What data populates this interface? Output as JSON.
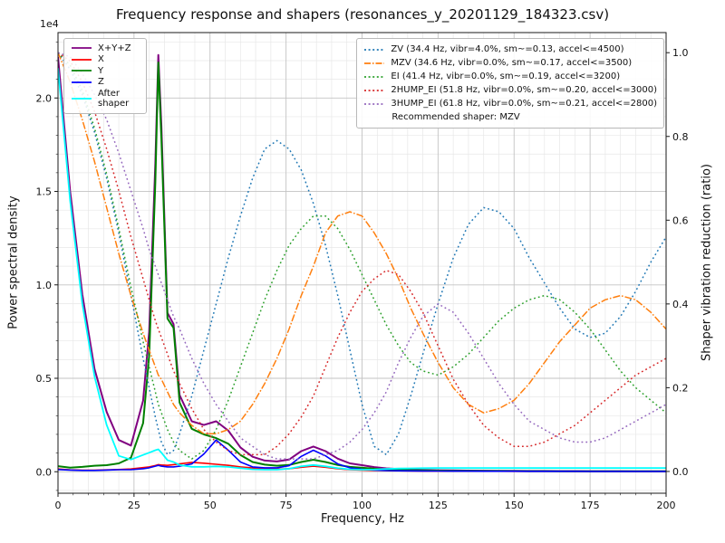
{
  "chart_data": {
    "type": "line",
    "title": "Frequency response and shapers (resonances_y_20201129_184323.csv)",
    "xlabel": "Frequency, Hz",
    "ylabel_left": "Power spectral density",
    "ylabel_right": "Shaper vibration reduction (ratio)",
    "offset_text": "1e4",
    "xlim": [
      0,
      200
    ],
    "ylim_left": [
      -1150,
      23500
    ],
    "ylim_right": [
      -0.052,
      1.048
    ],
    "xticks": [
      0,
      25,
      50,
      75,
      100,
      125,
      150,
      175,
      200
    ],
    "yticks_left": [
      "0.0",
      "0.5",
      "1.0",
      "1.5",
      "2.0"
    ],
    "yticks_right": [
      "0.0",
      "0.2",
      "0.4",
      "0.6",
      "0.8",
      "1.0"
    ],
    "grid": {
      "major": true,
      "minor": true
    },
    "legend_position": {
      "psd": "upper left",
      "shapers": "upper right"
    },
    "recommended_shaper": "MZV",
    "x": [
      0,
      4,
      8,
      12,
      16,
      20,
      24,
      28,
      30,
      32,
      33,
      34,
      36,
      38,
      40,
      44,
      48,
      52,
      56,
      60,
      64,
      68,
      72,
      76,
      80,
      84,
      88,
      92,
      96,
      100,
      104,
      108,
      112,
      116,
      120,
      125,
      130,
      135,
      140,
      145,
      150,
      155,
      160,
      165,
      170,
      175,
      180,
      185,
      190,
      195,
      200
    ],
    "psd_series": [
      {
        "name": "X+Y+Z",
        "color": "#800080",
        "dash": "solid",
        "width": 2.0,
        "values": [
          22200,
          15000,
          9500,
          5500,
          3200,
          1700,
          1400,
          3800,
          7500,
          16500,
          22300,
          18500,
          8500,
          7900,
          4100,
          2700,
          2500,
          2700,
          2200,
          1300,
          800,
          600,
          550,
          650,
          1100,
          1350,
          1100,
          700,
          450,
          350,
          250,
          180,
          150,
          120,
          100,
          80,
          70,
          60,
          55,
          50,
          45,
          40,
          40,
          35,
          35,
          30,
          30,
          30,
          25,
          25,
          25
        ]
      },
      {
        "name": "X",
        "color": "#ff0000",
        "dash": "solid",
        "width": 1.6,
        "values": [
          150,
          100,
          80,
          80,
          100,
          120,
          150,
          220,
          260,
          330,
          380,
          360,
          340,
          380,
          420,
          500,
          460,
          400,
          340,
          260,
          200,
          160,
          140,
          160,
          240,
          300,
          240,
          160,
          110,
          90,
          70,
          60,
          50,
          45,
          40,
          35,
          30,
          30,
          25,
          25,
          20,
          20,
          20,
          20,
          15,
          15,
          15,
          15,
          15,
          10,
          10
        ]
      },
      {
        "name": "Y",
        "color": "#008000",
        "dash": "solid",
        "width": 2.0,
        "values": [
          300,
          220,
          260,
          320,
          350,
          450,
          750,
          2600,
          6200,
          15500,
          21900,
          17800,
          8200,
          7700,
          3700,
          2300,
          2000,
          1800,
          1500,
          900,
          520,
          380,
          320,
          360,
          520,
          640,
          520,
          360,
          260,
          210,
          160,
          120,
          100,
          80,
          70,
          60,
          50,
          45,
          40,
          40,
          35,
          30,
          30,
          25,
          25,
          25,
          20,
          20,
          20,
          20,
          20
        ]
      },
      {
        "name": "Z",
        "color": "#0000ff",
        "dash": "solid",
        "width": 1.6,
        "values": [
          120,
          90,
          70,
          70,
          90,
          110,
          110,
          160,
          210,
          300,
          340,
          300,
          260,
          260,
          300,
          420,
          950,
          1700,
          1150,
          520,
          260,
          210,
          210,
          320,
          820,
          1150,
          850,
          420,
          210,
          130,
          90,
          60,
          50,
          45,
          40,
          35,
          30,
          30,
          25,
          25,
          25,
          20,
          20,
          20,
          20,
          15,
          15,
          15,
          15,
          15,
          15
        ]
      },
      {
        "name": "After shaper",
        "color": "#00ffff",
        "dash": "solid",
        "width": 1.8,
        "values": [
          21600,
          14500,
          9000,
          5100,
          2500,
          850,
          650,
          900,
          1020,
          1150,
          1200,
          1020,
          620,
          520,
          360,
          260,
          260,
          290,
          260,
          190,
          130,
          110,
          110,
          160,
          290,
          360,
          290,
          190,
          130,
          110,
          120,
          150,
          170,
          180,
          190,
          200,
          200,
          200,
          200,
          200,
          200,
          200,
          200,
          200,
          200,
          200,
          200,
          200,
          200,
          200,
          200
        ]
      }
    ],
    "shaper_series": [
      {
        "name": "ZV",
        "color": "#1f77b4",
        "dash": "dotted",
        "width": 1.5,
        "values": [
          1.0,
          0.96,
          0.9,
          0.81,
          0.7,
          0.57,
          0.42,
          0.27,
          0.2,
          0.13,
          0.1,
          0.07,
          0.04,
          0.05,
          0.09,
          0.18,
          0.29,
          0.4,
          0.51,
          0.61,
          0.7,
          0.77,
          0.79,
          0.77,
          0.72,
          0.64,
          0.54,
          0.42,
          0.29,
          0.16,
          0.06,
          0.04,
          0.09,
          0.18,
          0.28,
          0.4,
          0.51,
          0.59,
          0.63,
          0.62,
          0.58,
          0.51,
          0.45,
          0.39,
          0.34,
          0.32,
          0.33,
          0.37,
          0.43,
          0.5,
          0.56
        ]
      },
      {
        "name": "MZV",
        "color": "#ff7f0e",
        "dash": "dashdot",
        "width": 1.5,
        "values": [
          1.0,
          0.93,
          0.84,
          0.74,
          0.63,
          0.52,
          0.42,
          0.33,
          0.29,
          0.25,
          0.23,
          0.22,
          0.19,
          0.16,
          0.14,
          0.11,
          0.09,
          0.09,
          0.1,
          0.12,
          0.16,
          0.21,
          0.27,
          0.34,
          0.42,
          0.49,
          0.57,
          0.61,
          0.62,
          0.61,
          0.57,
          0.52,
          0.46,
          0.39,
          0.33,
          0.26,
          0.2,
          0.16,
          0.14,
          0.15,
          0.17,
          0.21,
          0.26,
          0.31,
          0.35,
          0.39,
          0.41,
          0.42,
          0.41,
          0.38,
          0.34
        ]
      },
      {
        "name": "EI",
        "color": "#2ca02c",
        "dash": "dotted",
        "width": 1.5,
        "values": [
          1.0,
          0.97,
          0.91,
          0.82,
          0.71,
          0.58,
          0.44,
          0.31,
          0.25,
          0.19,
          0.16,
          0.14,
          0.1,
          0.07,
          0.05,
          0.03,
          0.05,
          0.1,
          0.17,
          0.25,
          0.33,
          0.41,
          0.48,
          0.54,
          0.58,
          0.61,
          0.61,
          0.58,
          0.53,
          0.47,
          0.41,
          0.35,
          0.3,
          0.26,
          0.24,
          0.23,
          0.25,
          0.28,
          0.32,
          0.36,
          0.39,
          0.41,
          0.42,
          0.41,
          0.38,
          0.34,
          0.29,
          0.24,
          0.2,
          0.17,
          0.14
        ]
      },
      {
        "name": "2HUMP_EI",
        "color": "#d62728",
        "dash": "dotted",
        "width": 1.5,
        "values": [
          1.0,
          0.98,
          0.93,
          0.86,
          0.77,
          0.67,
          0.56,
          0.46,
          0.41,
          0.36,
          0.34,
          0.32,
          0.28,
          0.24,
          0.21,
          0.15,
          0.1,
          0.07,
          0.05,
          0.04,
          0.04,
          0.04,
          0.06,
          0.09,
          0.13,
          0.18,
          0.25,
          0.32,
          0.38,
          0.43,
          0.46,
          0.48,
          0.47,
          0.43,
          0.38,
          0.3,
          0.22,
          0.16,
          0.11,
          0.08,
          0.06,
          0.06,
          0.07,
          0.09,
          0.11,
          0.14,
          0.17,
          0.2,
          0.23,
          0.25,
          0.27
        ]
      },
      {
        "name": "3HUMP_EI",
        "color": "#9467bd",
        "dash": "dotted",
        "width": 1.5,
        "values": [
          1.0,
          0.99,
          0.95,
          0.9,
          0.84,
          0.76,
          0.67,
          0.58,
          0.53,
          0.49,
          0.47,
          0.45,
          0.41,
          0.37,
          0.34,
          0.27,
          0.21,
          0.16,
          0.12,
          0.08,
          0.06,
          0.04,
          0.03,
          0.03,
          0.03,
          0.03,
          0.04,
          0.05,
          0.07,
          0.1,
          0.14,
          0.19,
          0.26,
          0.32,
          0.37,
          0.4,
          0.38,
          0.33,
          0.27,
          0.21,
          0.16,
          0.12,
          0.1,
          0.08,
          0.07,
          0.07,
          0.08,
          0.1,
          0.12,
          0.14,
          0.16
        ]
      }
    ],
    "legend_psd": {
      "items": [
        {
          "label": "X+Y+Z",
          "color": "#800080",
          "dash": "solid"
        },
        {
          "label": "X",
          "color": "#ff0000",
          "dash": "solid"
        },
        {
          "label": "Y",
          "color": "#008000",
          "dash": "solid"
        },
        {
          "label": "Z",
          "color": "#0000ff",
          "dash": "solid"
        },
        {
          "label": "After shaper",
          "color": "#00ffff",
          "dash": "solid"
        }
      ]
    },
    "legend_shapers": {
      "items": [
        {
          "label": "ZV (34.4 Hz, vibr=4.0%, sm~=0.13, accel<=4500)",
          "color": "#1f77b4",
          "dash": "dotted"
        },
        {
          "label": "MZV (34.6 Hz, vibr=0.0%, sm~=0.17, accel<=3500)",
          "color": "#ff7f0e",
          "dash": "dashdot"
        },
        {
          "label": "EI (41.4 Hz, vibr=0.0%, sm~=0.19, accel<=3200)",
          "color": "#2ca02c",
          "dash": "dotted"
        },
        {
          "label": "2HUMP_EI (51.8 Hz, vibr=0.0%, sm~=0.20, accel<=3000)",
          "color": "#d62728",
          "dash": "dotted"
        },
        {
          "label": "3HUMP_EI (61.8 Hz, vibr=0.0%, sm~=0.21, accel<=2800)",
          "color": "#9467bd",
          "dash": "dotted"
        }
      ],
      "note": "Recommended shaper: MZV"
    }
  }
}
